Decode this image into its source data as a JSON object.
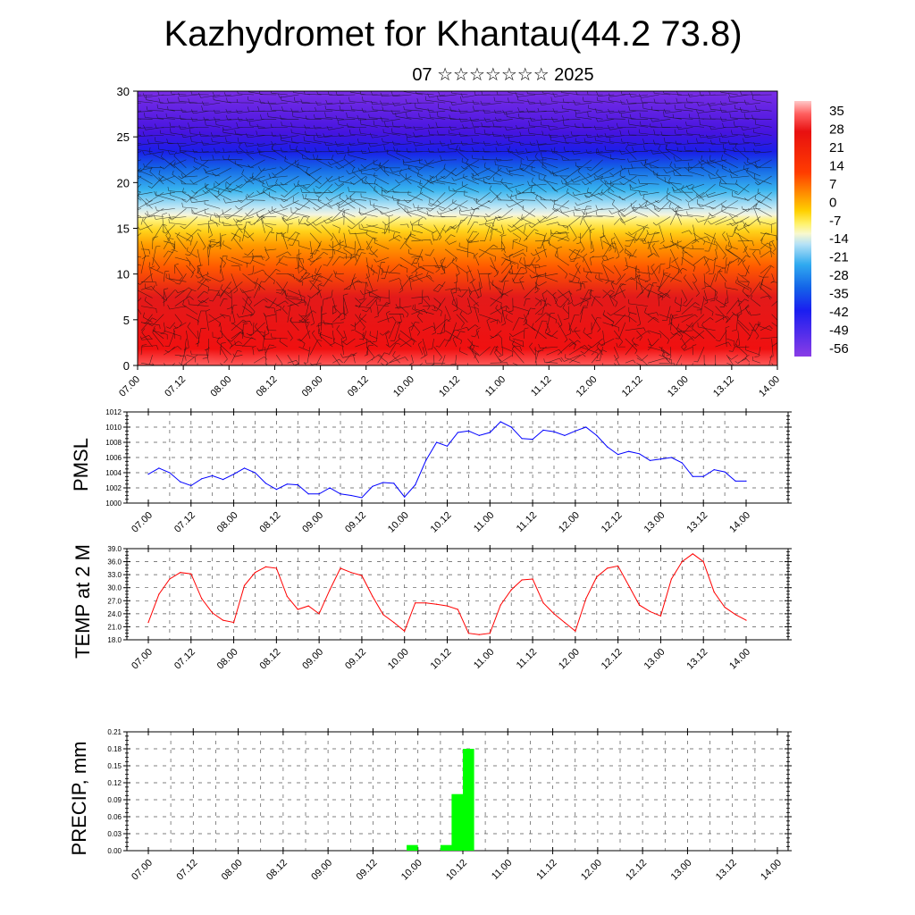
{
  "title": "Kazhydromet for Khantau(44.2 73.8)",
  "subtitle": "07 ☆☆☆☆☆☆☆ 2025",
  "x_tick_labels": [
    "07.00",
    "07.12",
    "08.00",
    "08.12",
    "09.00",
    "09.12",
    "10.00",
    "10.12",
    "11.00",
    "11.12",
    "12.00",
    "12.12",
    "13.00",
    "13.12",
    "14.00"
  ],
  "colors": {
    "pmsl_line": "#0000ff",
    "temp_line": "#ff0000",
    "precip_bar": "#00ff00"
  },
  "chart_data": [
    {
      "type": "heatmap",
      "name": "temperature-wind-cross-section",
      "x_range": [
        0,
        7
      ],
      "y_range": [
        0,
        30
      ],
      "yticks": [
        0,
        5,
        10,
        15,
        20,
        25,
        30
      ],
      "colorbar_labels": [
        "35",
        "28",
        "21",
        "14",
        "7",
        "0",
        "-7",
        "-14",
        "-21",
        "-28",
        "-35",
        "-42",
        "-49",
        "-56"
      ],
      "colorbar_values": [
        35,
        28,
        21,
        14,
        7,
        0,
        -7,
        -14,
        -21,
        -28,
        -35,
        -42,
        -49,
        -56
      ],
      "overlay": "wind barbs"
    },
    {
      "type": "line",
      "ylabel": "PMSL",
      "ylim": [
        1000,
        1012
      ],
      "yticks": [
        1000,
        1002,
        1004,
        1006,
        1008,
        1010,
        1012
      ],
      "x_hours_step": 3,
      "values": [
        1003.8,
        1004.6,
        1004.0,
        1002.8,
        1002.3,
        1003.2,
        1003.6,
        1003.1,
        1003.8,
        1004.6,
        1004.0,
        1002.6,
        1001.8,
        1002.5,
        1002.4,
        1001.2,
        1001.2,
        1002.0,
        1001.2,
        1001.0,
        1000.7,
        1002.2,
        1002.7,
        1002.6,
        1000.8,
        1002.4,
        1005.6,
        1008.0,
        1007.5,
        1009.3,
        1009.5,
        1008.9,
        1009.3,
        1010.7,
        1010.0,
        1008.5,
        1008.4,
        1009.6,
        1009.4,
        1008.9,
        1009.5,
        1010.0,
        1008.9,
        1007.4,
        1006.4,
        1006.8,
        1006.5,
        1005.6,
        1005.8,
        1006.0,
        1005.3,
        1003.5,
        1003.5,
        1004.4,
        1004.1,
        1002.9,
        1002.9
      ]
    },
    {
      "type": "line",
      "ylabel": "TEMP at 2 M",
      "ylim": [
        18,
        39
      ],
      "yticks": [
        "18.0",
        "21.0",
        "24.0",
        "27.0",
        "30.0",
        "33.0",
        "36.0",
        "39.0"
      ],
      "x_hours_step": 3,
      "values": [
        22.0,
        28.5,
        32.0,
        33.5,
        33.2,
        27.5,
        24.2,
        22.5,
        22.0,
        30.5,
        33.5,
        34.8,
        34.5,
        28.0,
        25.0,
        25.8,
        24.0,
        29.5,
        34.5,
        33.5,
        32.8,
        28.0,
        23.8,
        22.0,
        20.0,
        26.5,
        26.5,
        26.2,
        25.8,
        25.0,
        19.5,
        19.2,
        19.5,
        26.0,
        29.5,
        31.8,
        32.0,
        26.5,
        24.0,
        22.0,
        20.0,
        27.5,
        32.5,
        34.5,
        35.0,
        30.5,
        26.0,
        24.5,
        23.5,
        32.0,
        36.0,
        37.8,
        36.0,
        29.0,
        25.5,
        23.8,
        22.5
      ]
    },
    {
      "type": "bar",
      "ylabel": "PRECIP, mm",
      "ylim": [
        0,
        0.21
      ],
      "yticks": [
        "0.00",
        "0.03",
        "0.06",
        "0.09",
        "0.12",
        "0.15",
        "0.18",
        "0.21"
      ],
      "bars": [
        {
          "start_hour": 69,
          "end_hour": 72,
          "value": 0.01
        },
        {
          "start_hour": 78,
          "end_hour": 81,
          "value": 0.01
        },
        {
          "start_hour": 81,
          "end_hour": 84,
          "value": 0.1
        },
        {
          "start_hour": 84,
          "end_hour": 87,
          "value": 0.18
        }
      ]
    }
  ]
}
